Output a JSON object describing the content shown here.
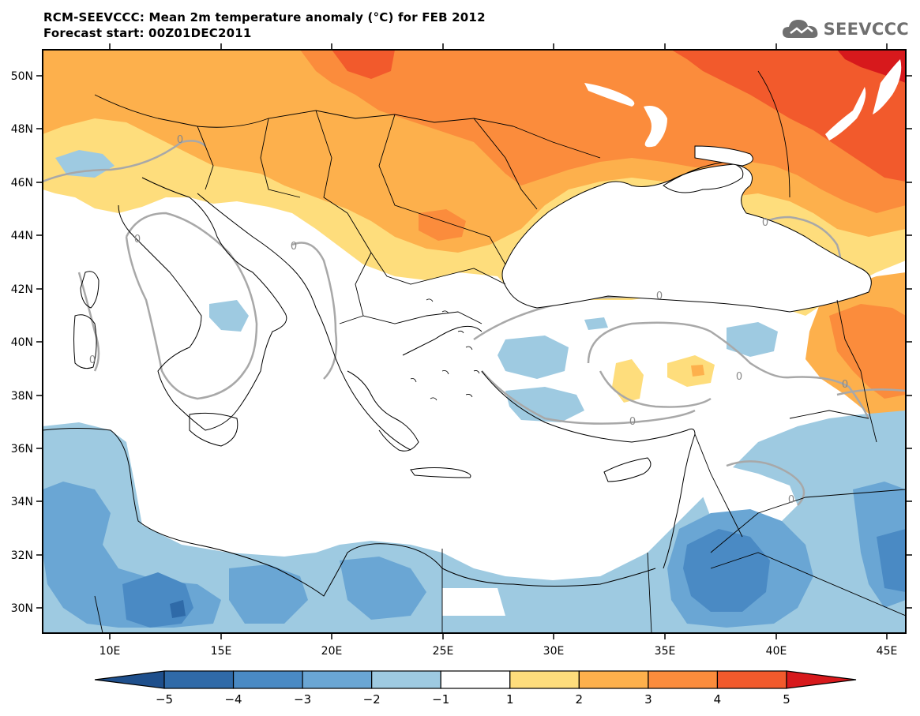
{
  "header": {
    "title_line1": "RCM-SEEVCCC: Mean 2m temperature anomaly (°C) for FEB 2012",
    "title_line2": "Forecast start: 00Z01DEC2011",
    "logo_text": "SEEVCCC",
    "logo_icon": "cloud-icon"
  },
  "map": {
    "lat_labels": [
      "50N",
      "48N",
      "46N",
      "44N",
      "42N",
      "40N",
      "38N",
      "36N",
      "34N",
      "32N",
      "30N"
    ],
    "lon_labels": [
      "10E",
      "15E",
      "20E",
      "25E",
      "30E",
      "35E",
      "40E",
      "45E"
    ],
    "contour_label": "0"
  },
  "colorbar": {
    "labels": [
      "−5",
      "−4",
      "−3",
      "−2",
      "−1",
      "1",
      "2",
      "3",
      "4",
      "5"
    ],
    "colors": [
      "#1e4f8c",
      "#2f6aa8",
      "#4a8ac4",
      "#6aa6d4",
      "#9ecae1",
      "#ffffff",
      "#fedd7c",
      "#fdb04c",
      "#fb8c3c",
      "#f25a2c",
      "#d7191c"
    ]
  }
}
